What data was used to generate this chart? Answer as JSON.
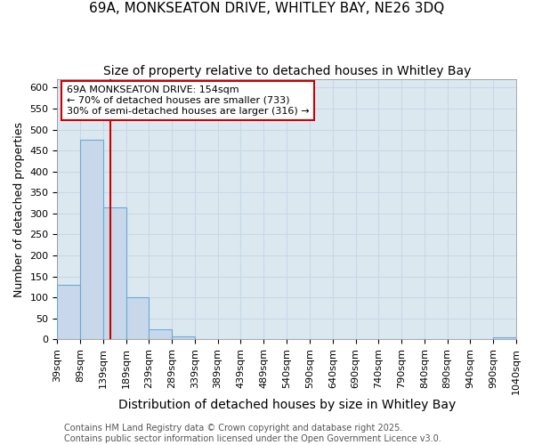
{
  "title_line1": "69A, MONKSEATON DRIVE, WHITLEY BAY, NE26 3DQ",
  "title_line2": "Size of property relative to detached houses in Whitley Bay",
  "xlabel": "Distribution of detached houses by size in Whitley Bay",
  "ylabel": "Number of detached properties",
  "bin_edges": [
    39,
    89,
    139,
    189,
    239,
    289,
    339,
    389,
    439,
    489,
    540,
    590,
    640,
    690,
    740,
    790,
    840,
    890,
    940,
    990,
    1040
  ],
  "bar_heights": [
    130,
    475,
    315,
    100,
    25,
    8,
    1,
    0,
    0,
    1,
    0,
    0,
    0,
    0,
    0,
    0,
    0,
    0,
    0,
    4
  ],
  "bar_color": "#c8d8ea",
  "bar_edgecolor": "#6aaad4",
  "grid_color": "#c8d8e8",
  "background_color": "#dce8f0",
  "property_line_x": 154,
  "property_line_color": "#cc0000",
  "annotation_text": "69A MONKSEATON DRIVE: 154sqm\n← 70% of detached houses are smaller (733)\n30% of semi-detached houses are larger (316) →",
  "ylim": [
    0,
    620
  ],
  "yticks": [
    0,
    50,
    100,
    150,
    200,
    250,
    300,
    350,
    400,
    450,
    500,
    550,
    600
  ],
  "footnote": "Contains HM Land Registry data © Crown copyright and database right 2025.\nContains public sector information licensed under the Open Government Licence v3.0.",
  "title_fontsize": 11,
  "subtitle_fontsize": 10,
  "tick_label_fontsize": 8,
  "ylabel_fontsize": 9,
  "xlabel_fontsize": 10,
  "annotation_fontsize": 8,
  "footnote_fontsize": 7
}
